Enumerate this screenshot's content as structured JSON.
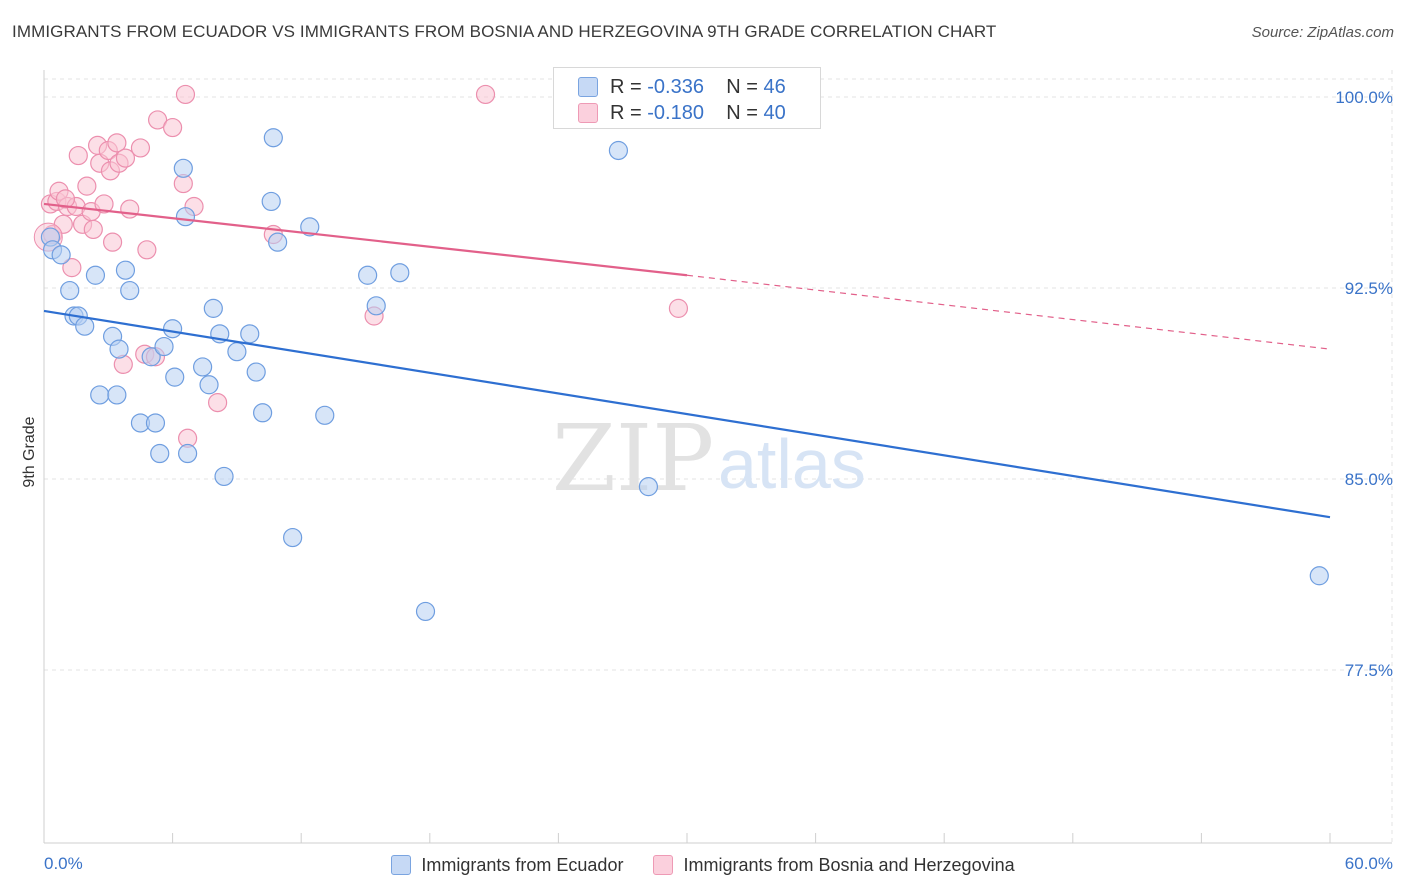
{
  "title": "IMMIGRANTS FROM ECUADOR VS IMMIGRANTS FROM BOSNIA AND HERZEGOVINA 9TH GRADE CORRELATION CHART",
  "source_label": "Source:",
  "source_value": "ZipAtlas.com",
  "watermark": {
    "zip": "ZIP",
    "atlas": "atlas"
  },
  "colors": {
    "blue_fill": "#b7d0f2",
    "blue_stroke": "#6f9ee0",
    "blue_line": "#2e6fd1",
    "pink_fill": "#f9c4d4",
    "pink_stroke": "#ec8fae",
    "pink_line": "#e2608a",
    "grid": "#e3e3e3",
    "axis_text": "#3a73c8"
  },
  "stats": {
    "ecuador": {
      "r_label": "R = ",
      "r_value": "-0.336",
      "n_label": "N = ",
      "n_value": "46"
    },
    "bosnia": {
      "r_label": "R = ",
      "r_value": "-0.180",
      "n_label": "N = ",
      "n_value": "40"
    }
  },
  "legend": {
    "ecuador": "Immigrants from Ecuador",
    "bosnia": "Immigrants from Bosnia and Herzegovina"
  },
  "chart_data": {
    "type": "scatter",
    "title": "IMMIGRANTS FROM ECUADOR VS IMMIGRANTS FROM BOSNIA AND HERZEGOVINA 9TH GRADE CORRELATION CHART",
    "xlabel": "",
    "ylabel": "9th Grade",
    "xlim": [
      0,
      60
    ],
    "ylim": [
      70.5,
      101.5
    ],
    "x_tick_labels": [
      "0.0%",
      "60.0%"
    ],
    "y_ticks": [
      77.5,
      85.0,
      92.5,
      100.0
    ],
    "y_tick_labels": [
      "77.5%",
      "85.0%",
      "92.5%",
      "100.0%"
    ],
    "grid": true,
    "legend_position": "bottom",
    "series": [
      {
        "name": "Immigrants from Ecuador",
        "color": "blue",
        "trend": {
          "x0": 0,
          "y0": 91.6,
          "x1": 60,
          "y1": 83.5,
          "dashed_to": null
        },
        "points": [
          [
            0.3,
            94.5
          ],
          [
            0.4,
            94.0
          ],
          [
            0.8,
            93.8
          ],
          [
            1.2,
            92.4
          ],
          [
            1.4,
            91.4
          ],
          [
            1.6,
            91.4
          ],
          [
            1.9,
            91.0
          ],
          [
            2.4,
            93.0
          ],
          [
            2.6,
            88.3
          ],
          [
            3.2,
            90.6
          ],
          [
            3.4,
            88.3
          ],
          [
            3.5,
            90.1
          ],
          [
            3.8,
            93.2
          ],
          [
            4.0,
            92.4
          ],
          [
            4.5,
            87.2
          ],
          [
            5.0,
            89.8
          ],
          [
            5.2,
            87.2
          ],
          [
            5.4,
            86.0
          ],
          [
            5.6,
            90.2
          ],
          [
            6.0,
            90.9
          ],
          [
            6.1,
            89.0
          ],
          [
            6.6,
            95.3
          ],
          [
            6.7,
            86.0
          ],
          [
            7.4,
            89.4
          ],
          [
            7.7,
            88.7
          ],
          [
            7.9,
            91.7
          ],
          [
            8.2,
            90.7
          ],
          [
            8.4,
            85.1
          ],
          [
            9.0,
            90.0
          ],
          [
            9.6,
            90.7
          ],
          [
            9.9,
            89.2
          ],
          [
            10.2,
            87.6
          ],
          [
            10.6,
            95.9
          ],
          [
            10.7,
            98.4
          ],
          [
            10.9,
            94.3
          ],
          [
            11.6,
            82.7
          ],
          [
            12.4,
            94.9
          ],
          [
            13.1,
            87.5
          ],
          [
            15.1,
            93.0
          ],
          [
            15.5,
            91.8
          ],
          [
            16.6,
            93.1
          ],
          [
            17.8,
            79.8
          ],
          [
            26.8,
            97.9
          ],
          [
            28.2,
            84.7
          ],
          [
            59.5,
            81.2
          ],
          [
            6.5,
            97.2
          ]
        ]
      },
      {
        "name": "Immigrants from Bosnia and Herzegovina",
        "color": "pink",
        "trend": {
          "x0": 0,
          "y0": 95.8,
          "x1": 30,
          "y1": 93.0,
          "dashed_to": {
            "x": 60,
            "y": 90.1
          }
        },
        "points": [
          [
            0.3,
            95.8
          ],
          [
            0.4,
            94.6
          ],
          [
            0.6,
            95.9
          ],
          [
            0.7,
            96.3
          ],
          [
            0.9,
            95.0
          ],
          [
            1.1,
            95.7
          ],
          [
            1.3,
            93.3
          ],
          [
            1.5,
            95.7
          ],
          [
            1.6,
            97.7
          ],
          [
            1.8,
            95.0
          ],
          [
            2.0,
            96.5
          ],
          [
            2.2,
            95.5
          ],
          [
            2.3,
            94.8
          ],
          [
            2.5,
            98.1
          ],
          [
            2.6,
            97.4
          ],
          [
            2.8,
            95.8
          ],
          [
            3.0,
            97.9
          ],
          [
            3.1,
            97.1
          ],
          [
            3.2,
            94.3
          ],
          [
            3.4,
            98.2
          ],
          [
            3.5,
            97.4
          ],
          [
            3.7,
            89.5
          ],
          [
            3.8,
            97.6
          ],
          [
            4.0,
            95.6
          ],
          [
            4.5,
            98.0
          ],
          [
            4.7,
            89.9
          ],
          [
            4.8,
            94.0
          ],
          [
            5.3,
            99.1
          ],
          [
            6.0,
            98.8
          ],
          [
            6.5,
            96.6
          ],
          [
            6.6,
            100.1
          ],
          [
            6.7,
            86.6
          ],
          [
            7.0,
            95.7
          ],
          [
            8.1,
            88.0
          ],
          [
            10.7,
            94.6
          ],
          [
            15.4,
            91.4
          ],
          [
            20.6,
            100.1
          ],
          [
            29.6,
            91.7
          ],
          [
            5.2,
            89.8
          ],
          [
            1.0,
            96.0
          ]
        ]
      }
    ]
  }
}
